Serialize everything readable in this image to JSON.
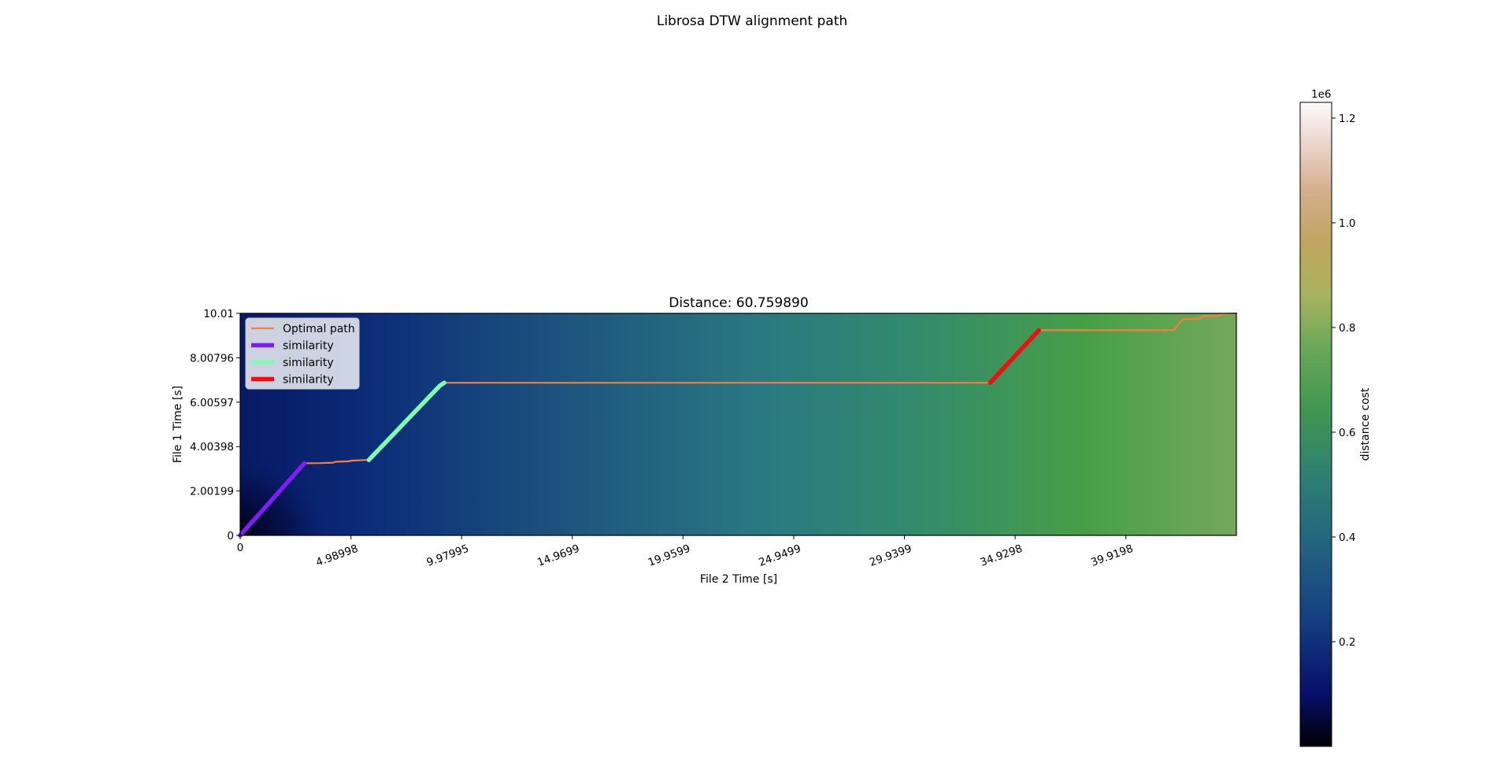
{
  "figure": {
    "suptitle": "Librosa DTW alignment path"
  },
  "chart_data": {
    "type": "heatmap",
    "title": "Distance: 60.759890",
    "xlabel": "File 2 Time [s]",
    "ylabel": "File 1 Time [s]",
    "xlim": [
      0,
      44.9
    ],
    "ylim": [
      0,
      10.01
    ],
    "x_ticks": [
      "0",
      "4.98998",
      "9.97995",
      "14.9699",
      "19.9599",
      "24.9499",
      "29.9399",
      "34.9298",
      "39.9198"
    ],
    "x_tick_values": [
      0,
      4.98998,
      9.97995,
      14.9699,
      19.9599,
      24.9499,
      29.9399,
      34.9298,
      39.9198
    ],
    "x_tick_rotation": -20,
    "y_ticks": [
      "0",
      "2.00199",
      "4.00398",
      "6.00597",
      "8.00796",
      "10.01"
    ],
    "y_tick_values": [
      0,
      2.00199,
      4.00398,
      6.00597,
      8.00796,
      10.01
    ],
    "colormap": "gist_earth",
    "colorbar": {
      "label": "distance cost",
      "offset_label": "1e6",
      "range": [
        0,
        1.23
      ],
      "ticks": [
        "0.2",
        "0.4",
        "0.6",
        "0.8",
        "1.0",
        "1.2"
      ],
      "tick_values": [
        0.2,
        0.4,
        0.6,
        0.8,
        1.0,
        1.2
      ]
    },
    "legend": {
      "placement": "upper-left",
      "entries": [
        {
          "label": "Optimal path",
          "color": "#f47e45"
        },
        {
          "label": "similarity",
          "color": "#7e1df4"
        },
        {
          "label": "similarity",
          "color": "#82f9b0"
        },
        {
          "label": "similarity",
          "color": "#ee1010"
        }
      ]
    },
    "series": [
      {
        "name": "Optimal path",
        "color": "#f47e45",
        "x": [
          2.9,
          3.6,
          4.2,
          4.3,
          4.9,
          5.0,
          5.7,
          5.8,
          9.2,
          20,
          30,
          33.8,
          36.0,
          40,
          42.1,
          42.3,
          42.5,
          43.2,
          43.4,
          44.1,
          44.3,
          44.9
        ],
        "y": [
          3.25,
          3.26,
          3.28,
          3.32,
          3.34,
          3.37,
          3.4,
          3.4,
          6.88,
          6.88,
          6.88,
          6.88,
          9.25,
          9.25,
          9.25,
          9.55,
          9.75,
          9.76,
          9.88,
          9.9,
          9.98,
          10.01
        ]
      },
      {
        "name": "similarity",
        "color": "#7e1df4",
        "x": [
          0,
          2.9
        ],
        "y": [
          0,
          3.25
        ]
      },
      {
        "name": "similarity",
        "color": "#82f9b0",
        "x": [
          5.8,
          9.0,
          9.2
        ],
        "y": [
          3.4,
          6.75,
          6.88
        ]
      },
      {
        "name": "similarity",
        "color": "#ee1010",
        "x": [
          33.8,
          36.0
        ],
        "y": [
          6.88,
          9.25
        ]
      }
    ]
  }
}
